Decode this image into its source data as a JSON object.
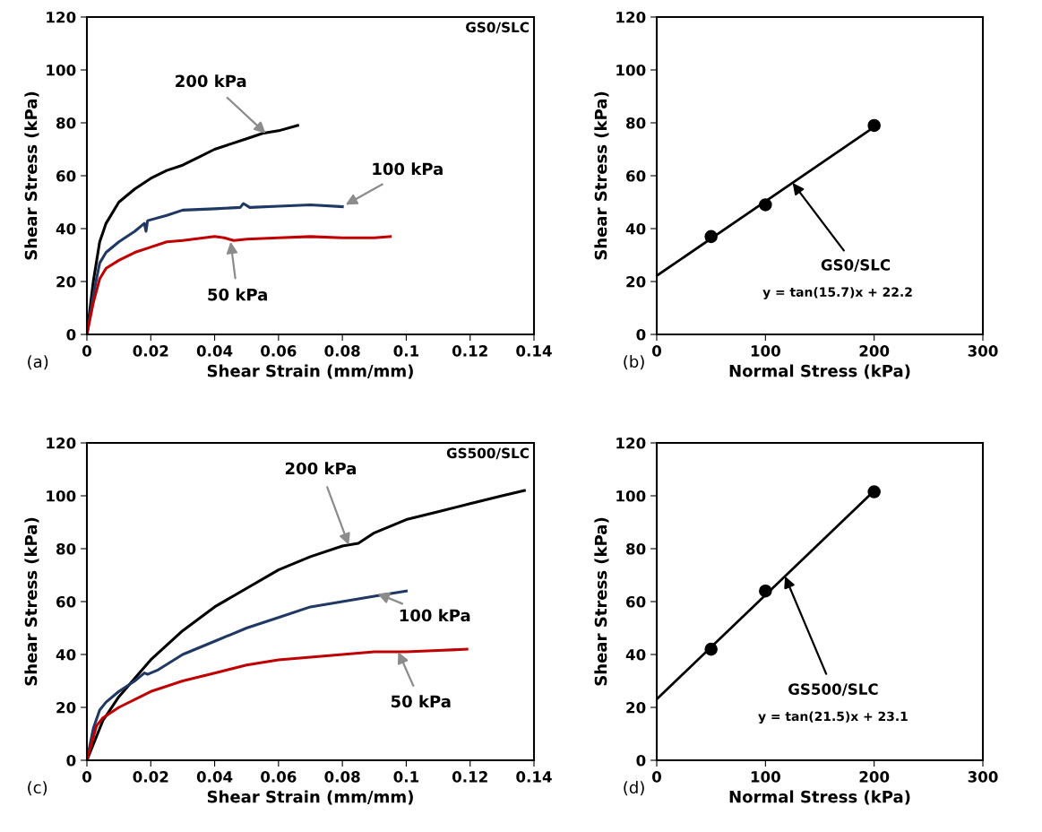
{
  "chart_data": [
    {
      "type": "line",
      "xlabel": "Shear Strain (mm/mm)",
      "ylabel": "Shear Stress (kPa)",
      "xlim": [
        0,
        0.14
      ],
      "ylim": [
        0,
        120
      ],
      "xticks": [
        0,
        0.02,
        0.04,
        0.06,
        0.08,
        0.1,
        0.12,
        0.14
      ],
      "yticks": [
        0,
        20,
        40,
        60,
        80,
        100,
        120
      ],
      "grid": false,
      "marker": "none",
      "line_style": "solid",
      "series": [
        {
          "color": "#000000",
          "x": [
            0,
            0.002,
            0.004,
            0.006,
            0.01,
            0.015,
            0.02,
            0.025,
            0.03,
            0.035,
            0.04,
            0.045,
            0.05,
            0.055,
            0.06,
            0.066
          ],
          "values": [
            0,
            20,
            35,
            42,
            50,
            55,
            59,
            62,
            64,
            67,
            70,
            72,
            74,
            76,
            77,
            79
          ]
        },
        {
          "color": "#203864",
          "x": [
            0,
            0.002,
            0.004,
            0.006,
            0.01,
            0.015,
            0.018,
            0.0185,
            0.019,
            0.025,
            0.03,
            0.04,
            0.048,
            0.049,
            0.051,
            0.06,
            0.07,
            0.08
          ],
          "values": [
            0,
            15,
            27,
            31,
            35,
            39,
            42,
            39,
            43,
            45,
            47,
            47.5,
            48,
            49.5,
            48,
            48.5,
            49,
            48.3
          ]
        },
        {
          "color": "#c00000",
          "x": [
            0,
            0.002,
            0.004,
            0.006,
            0.01,
            0.015,
            0.02,
            0.025,
            0.03,
            0.04,
            0.043,
            0.046,
            0.05,
            0.06,
            0.07,
            0.08,
            0.09,
            0.095
          ],
          "values": [
            0,
            12,
            21,
            25,
            28,
            31,
            33,
            35,
            35.5,
            37,
            36.5,
            35.5,
            36,
            36.5,
            37,
            36.5,
            36.5,
            37
          ]
        }
      ],
      "annotations": [
        "GS0/SLC",
        "(a)",
        {
          "text": "200 kPa",
          "x": 0.056,
          "y": 76
        },
        {
          "text": "100 kPa",
          "x": 0.081,
          "y": 49
        },
        {
          "text": "50 kPa",
          "x": 0.045,
          "y": 35
        }
      ]
    },
    {
      "type": "scatter",
      "xlabel": "Normal Stress (kPa)",
      "ylabel": "Shear Stress (kPa)",
      "xlim": [
        0,
        300
      ],
      "ylim": [
        0,
        120
      ],
      "xticks": [
        0,
        100,
        200,
        300
      ],
      "yticks": [
        0,
        20,
        40,
        60,
        80,
        100,
        120
      ],
      "grid": false,
      "marker": "circle",
      "series": [
        {
          "type": "line",
          "marker": "none",
          "color": "#000000",
          "x": [
            0,
            200
          ],
          "values": [
            22.2,
            78.4
          ]
        },
        {
          "color": "#000000",
          "x": [
            50,
            100,
            200
          ],
          "values": [
            37,
            49,
            79
          ]
        }
      ],
      "annotations": [
        {
          "text": "GS0/SLC",
          "x": 125,
          "y": 57.3
        },
        "y = tan(15.7)x + 22.2",
        "(b)"
      ]
    },
    {
      "type": "line",
      "xlabel": "Shear Strain (mm/mm)",
      "ylabel": "Shear Stress (kPa)",
      "xlim": [
        0,
        0.14
      ],
      "ylim": [
        0,
        120
      ],
      "xticks": [
        0,
        0.02,
        0.04,
        0.06,
        0.08,
        0.1,
        0.12,
        0.14
      ],
      "yticks": [
        0,
        20,
        40,
        60,
        80,
        100,
        120
      ],
      "grid": false,
      "marker": "none",
      "line_style": "solid",
      "series": [
        {
          "color": "#000000",
          "x": [
            0,
            0.005,
            0.01,
            0.015,
            0.02,
            0.03,
            0.04,
            0.05,
            0.06,
            0.07,
            0.08,
            0.085,
            0.09,
            0.1,
            0.11,
            0.12,
            0.13,
            0.137
          ],
          "values": [
            0,
            15,
            24,
            31,
            38,
            49,
            58,
            65,
            72,
            77,
            81,
            82,
            86,
            91,
            94,
            97,
            100,
            102
          ]
        },
        {
          "color": "#203864",
          "x": [
            0,
            0.002,
            0.004,
            0.006,
            0.01,
            0.015,
            0.018,
            0.019,
            0.022,
            0.03,
            0.04,
            0.05,
            0.06,
            0.07,
            0.08,
            0.09,
            0.1
          ],
          "values": [
            0,
            12,
            19,
            22,
            26,
            30,
            33,
            32.5,
            34,
            40,
            45,
            50,
            54,
            58,
            60,
            62,
            64
          ]
        },
        {
          "color": "#c00000",
          "x": [
            0,
            0.003,
            0.005,
            0.01,
            0.02,
            0.03,
            0.04,
            0.05,
            0.06,
            0.07,
            0.08,
            0.09,
            0.1,
            0.11,
            0.119
          ],
          "values": [
            0,
            13,
            16,
            20,
            26,
            30,
            33,
            36,
            38,
            39,
            40,
            41,
            41,
            41.5,
            42
          ]
        }
      ],
      "annotations": [
        "GS500/SLC",
        "(c)",
        {
          "text": "200 kPa",
          "x": 0.082,
          "y": 81.4
        },
        {
          "text": "100 kPa",
          "x": 0.091,
          "y": 63
        },
        {
          "text": "50 kPa",
          "x": 0.0975,
          "y": 41
        }
      ]
    },
    {
      "type": "scatter",
      "xlabel": "Normal Stress (kPa)",
      "ylabel": "Shear Stress (kPa)",
      "xlim": [
        0,
        300
      ],
      "ylim": [
        0,
        120
      ],
      "xticks": [
        0,
        100,
        200,
        300
      ],
      "yticks": [
        0,
        20,
        40,
        60,
        80,
        100,
        120
      ],
      "grid": false,
      "marker": "circle",
      "series": [
        {
          "type": "line",
          "marker": "none",
          "color": "#000000",
          "x": [
            0,
            200
          ],
          "values": [
            23.1,
            101.9
          ]
        },
        {
          "color": "#000000",
          "x": [
            50,
            100,
            200
          ],
          "values": [
            42,
            64,
            101.5
          ]
        }
      ],
      "annotations": [
        {
          "text": "GS500/SLC",
          "x": 118,
          "y": 69.6
        },
        "y = tan(21.5)x + 23.1",
        "(d)"
      ]
    }
  ]
}
